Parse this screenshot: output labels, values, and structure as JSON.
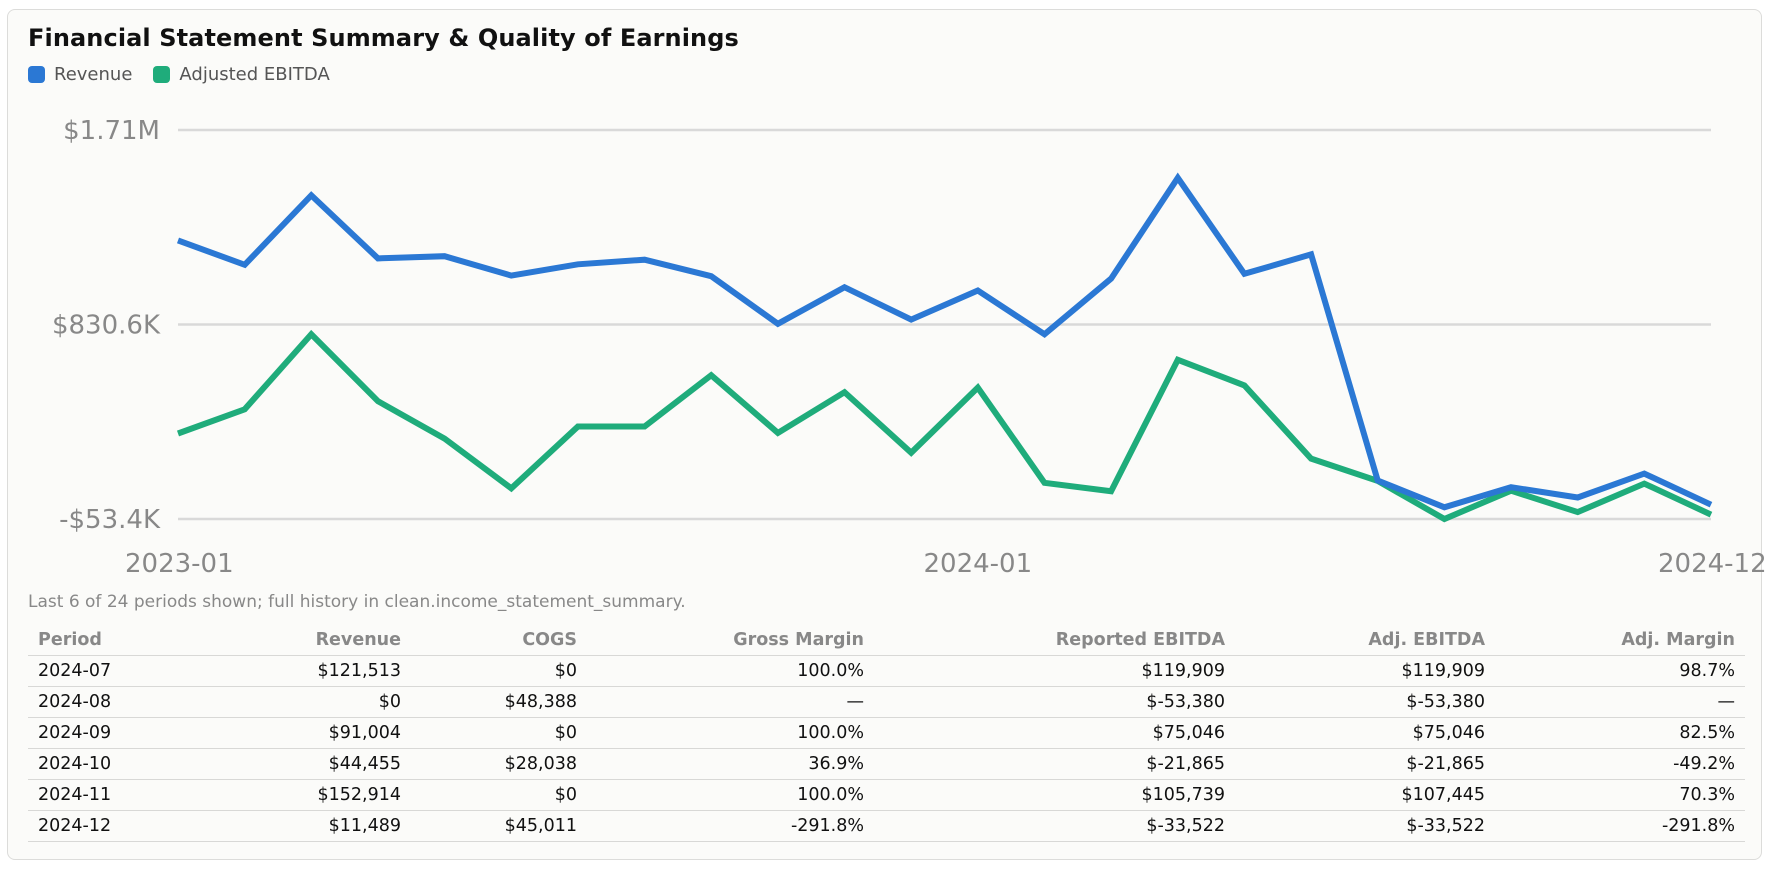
{
  "header": {
    "title": "Financial Statement Summary & Quality of Earnings"
  },
  "legend": [
    {
      "label": "Revenue",
      "color": "#2b78d4"
    },
    {
      "label": "Adjusted EBITDA",
      "color": "#1fac7b"
    }
  ],
  "colors": {
    "revenue": "#2b78d4",
    "adjusted_ebitda": "#1fac7b",
    "grid": "#d9d9d9",
    "axis_text": "#888888"
  },
  "chart_data": {
    "type": "line",
    "title": "Financial Statement Summary & Quality of Earnings",
    "x": [
      "2023-01",
      "2023-02",
      "2023-03",
      "2023-04",
      "2023-05",
      "2023-06",
      "2023-07",
      "2023-08",
      "2023-09",
      "2023-10",
      "2023-11",
      "2023-12",
      "2024-01",
      "2024-02",
      "2024-03",
      "2024-04",
      "2024-05",
      "2024-06",
      "2024-07",
      "2024-08",
      "2024-09",
      "2024-10",
      "2024-11",
      "2024-12"
    ],
    "x_ticks": [
      "2023-01",
      "2024-01",
      "2024-12"
    ],
    "y_ticks": [
      "$1.71M",
      "$830.6K",
      "-$53.4K"
    ],
    "y_tick_values": [
      1714600,
      830600,
      -53400
    ],
    "ylim": [
      -53400,
      1714600
    ],
    "grid": true,
    "legend_position": "top-left",
    "series": [
      {
        "name": "Revenue",
        "color": "#2b78d4",
        "values": [
          1213000,
          1102000,
          1418000,
          1131000,
          1141000,
          1053000,
          1104000,
          1125000,
          1050000,
          834000,
          1000000,
          853000,
          985000,
          786000,
          1039000,
          1497000,
          1061000,
          1149000,
          121513,
          0,
          91004,
          44455,
          152914,
          11489
        ]
      },
      {
        "name": "Adjusted EBITDA",
        "color": "#1fac7b",
        "values": [
          335000,
          445000,
          786000,
          482000,
          312000,
          86000,
          367000,
          367000,
          600000,
          338000,
          523000,
          248000,
          544000,
          111000,
          73000,
          670000,
          554000,
          221000,
          119909,
          -53380,
          75046,
          -21865,
          107445,
          -33522
        ]
      }
    ]
  },
  "note": "Last 6 of 24 periods shown; full history in clean.income_statement_summary.",
  "table": {
    "columns": [
      "Period",
      "Revenue",
      "COGS",
      "Gross Margin",
      "Reported EBITDA",
      "Adj. EBITDA",
      "Adj. Margin"
    ],
    "rows": [
      [
        "2024-07",
        "$121,513",
        "$0",
        "100.0%",
        "$119,909",
        "$119,909",
        "98.7%"
      ],
      [
        "2024-08",
        "$0",
        "$48,388",
        "—",
        "$-53,380",
        "$-53,380",
        "—"
      ],
      [
        "2024-09",
        "$91,004",
        "$0",
        "100.0%",
        "$75,046",
        "$75,046",
        "82.5%"
      ],
      [
        "2024-10",
        "$44,455",
        "$28,038",
        "36.9%",
        "$-21,865",
        "$-21,865",
        "-49.2%"
      ],
      [
        "2024-11",
        "$152,914",
        "$0",
        "100.0%",
        "$105,739",
        "$107,445",
        "70.3%"
      ],
      [
        "2024-12",
        "$11,489",
        "$45,011",
        "-291.8%",
        "$-33,522",
        "$-33,522",
        "-291.8%"
      ]
    ]
  }
}
